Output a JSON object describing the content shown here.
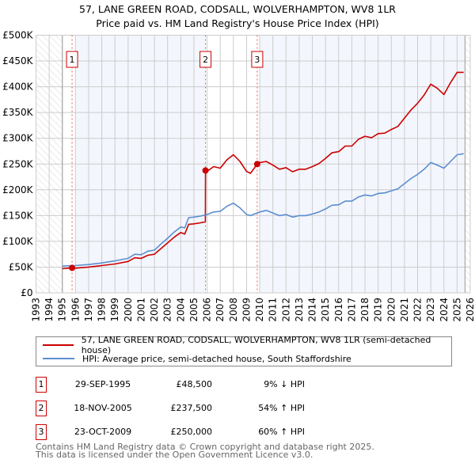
{
  "title_line1": "57, LANE GREEN ROAD, CODSALL, WOLVERHAMPTON, WV8 1LR",
  "title_line2": "Price paid vs. HM Land Registry's House Price Index (HPI)",
  "legend": [
    {
      "label": "57, LANE GREEN ROAD, CODSALL, WOLVERHAMPTON, WV8 1LR (semi-detached house)",
      "color": "#cc0000"
    },
    {
      "label": "HPI: Average price, semi-detached house, South Staffordshire",
      "color": "#5b8ed0"
    }
  ],
  "sales": [
    {
      "num": "1",
      "date": "29-SEP-1995",
      "price": "£48,500",
      "hpi": "9% ↓ HPI"
    },
    {
      "num": "2",
      "date": "18-NOV-2005",
      "price": "£237,500",
      "hpi": "54% ↑ HPI"
    },
    {
      "num": "3",
      "date": "23-OCT-2009",
      "price": "£250,000",
      "hpi": "60% ↑ HPI"
    }
  ],
  "footer": [
    "Contains HM Land Registry data © Crown copyright and database right 2025.",
    "This data is licensed under the Open Government Licence v3.0."
  ],
  "chart_data": {
    "type": "line",
    "xlim": [
      1993,
      2026
    ],
    "ylim": [
      0,
      500000
    ],
    "yticks": [
      0,
      50000,
      100000,
      150000,
      200000,
      250000,
      300000,
      350000,
      400000,
      450000,
      500000
    ],
    "ytick_labels": [
      "£0",
      "£50K",
      "£100K",
      "£150K",
      "£200K",
      "£250K",
      "£300K",
      "£350K",
      "£400K",
      "£450K",
      "£500K"
    ],
    "xticks": [
      "1993",
      "1994",
      "1995",
      "1996",
      "1997",
      "1998",
      "1999",
      "2000",
      "2001",
      "2002",
      "2003",
      "2004",
      "2005",
      "2006",
      "2007",
      "2008",
      "2009",
      "2010",
      "2011",
      "2012",
      "2013",
      "2014",
      "2015",
      "2016",
      "2017",
      "2018",
      "2019",
      "2020",
      "2021",
      "2022",
      "2023",
      "2024",
      "2025",
      "2026"
    ],
    "grid": true,
    "data_start": 1995,
    "data_end": 2025.6,
    "shaded_ranges": [
      [
        1996,
        2005.88
      ],
      [
        2010,
        2025.6
      ]
    ],
    "sale_points": [
      {
        "label": "1",
        "x": 1995.74,
        "y": 48500
      },
      {
        "label": "2",
        "x": 2005.88,
        "y": 237500
      },
      {
        "label": "3",
        "x": 2009.81,
        "y": 250000
      }
    ],
    "series": [
      {
        "name": "HPI",
        "color": "#5b8ed0",
        "x": [
          1995,
          1996,
          1997,
          1998,
          1999,
          2000,
          2000.5,
          2001,
          2001.5,
          2002,
          2002.5,
          2003,
          2003.5,
          2004,
          2004.3,
          2004.6,
          2005,
          2005.5,
          2006,
          2006.5,
          2007,
          2007.5,
          2008,
          2008.5,
          2009,
          2009.3,
          2010,
          2010.5,
          2011,
          2011.5,
          2012,
          2012.5,
          2013,
          2013.5,
          2014,
          2014.5,
          2015,
          2015.5,
          2016,
          2016.5,
          2017,
          2017.5,
          2018,
          2018.5,
          2019,
          2019.5,
          2020,
          2020.5,
          2021,
          2021.5,
          2022,
          2022.5,
          2023,
          2023.5,
          2024,
          2024.5,
          2025,
          2025.5
        ],
        "y": [
          52000,
          53000,
          55000,
          58000,
          62000,
          67000,
          75000,
          74000,
          81000,
          83000,
          95000,
          106000,
          118000,
          128000,
          126000,
          146000,
          147000,
          149000,
          152000,
          157000,
          158000,
          168000,
          174000,
          165000,
          152000,
          150000,
          157000,
          160000,
          155000,
          150000,
          152000,
          147000,
          150000,
          150000,
          153000,
          157000,
          163000,
          170000,
          171000,
          178000,
          178000,
          186000,
          190000,
          188000,
          193000,
          194000,
          198000,
          202000,
          212000,
          222000,
          230000,
          240000,
          253000,
          248000,
          242000,
          255000,
          268000,
          270000
        ]
      },
      {
        "name": "Price paid",
        "color": "#cc0000",
        "x": [
          1995,
          1995.74,
          1996,
          1997,
          1998,
          1999,
          2000,
          2000.5,
          2001,
          2001.5,
          2002,
          2002.5,
          2003,
          2003.5,
          2004,
          2004.3,
          2004.6,
          2005,
          2005.5,
          2005.87,
          2005.88,
          2006,
          2006.5,
          2007,
          2007.5,
          2008,
          2008.5,
          2009,
          2009.3,
          2009.81,
          2010,
          2010.5,
          2011,
          2011.5,
          2012,
          2012.5,
          2013,
          2013.5,
          2014,
          2014.5,
          2015,
          2015.5,
          2016,
          2016.5,
          2017,
          2017.5,
          2018,
          2018.5,
          2019,
          2019.5,
          2020,
          2020.5,
          2021,
          2021.5,
          2022,
          2022.5,
          2023,
          2023.5,
          2024,
          2024.5,
          2025,
          2025.5
        ],
        "y": [
          47000,
          48500,
          48000,
          50000,
          53000,
          56000,
          61000,
          68000,
          67000,
          73000,
          75000,
          86000,
          97000,
          108000,
          117000,
          114000,
          133000,
          134000,
          136000,
          138000,
          237500,
          236000,
          245000,
          242000,
          258000,
          268000,
          255000,
          236000,
          232000,
          250000,
          253000,
          255000,
          248000,
          240000,
          243000,
          235000,
          240000,
          240000,
          245000,
          251000,
          261000,
          272000,
          274000,
          285000,
          285000,
          298000,
          304000,
          301000,
          309000,
          310000,
          317000,
          323000,
          339000,
          355000,
          368000,
          384000,
          405000,
          397000,
          385000,
          408000,
          428000,
          428000
        ]
      }
    ]
  }
}
